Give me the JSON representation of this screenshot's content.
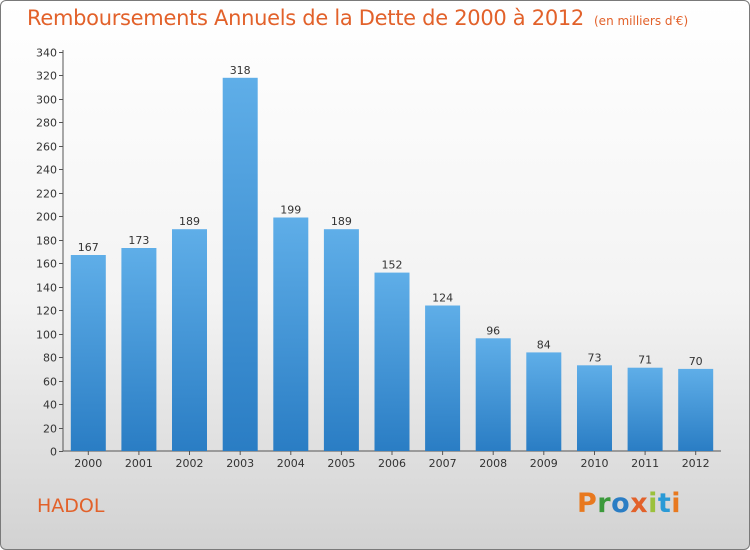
{
  "header": {
    "title": "Remboursements Annuels de la Dette de 2000 à 2012",
    "unit": "(en milliers d'€)"
  },
  "footer": {
    "city": "HADOL",
    "logo_text": "Proxiti"
  },
  "colors": {
    "accent": "#e2612a",
    "bar_top": "#5faee8",
    "bar_bottom": "#2a7dc4",
    "logo_letters": [
      "#e8791f",
      "#3c9a3c",
      "#2a7dc4",
      "#e2612a",
      "#9bc13c",
      "#2a9ad6",
      "#e8791f"
    ]
  },
  "chart_data": {
    "type": "bar",
    "title": "Remboursements Annuels de la Dette de 2000 à 2012",
    "xlabel": "",
    "ylabel": "",
    "categories": [
      "2000",
      "2001",
      "2002",
      "2003",
      "2004",
      "2005",
      "2006",
      "2007",
      "2008",
      "2009",
      "2010",
      "2011",
      "2012"
    ],
    "values": [
      167,
      173,
      189,
      318,
      199,
      189,
      152,
      124,
      96,
      84,
      73,
      71,
      70
    ],
    "ylim": [
      0,
      340
    ],
    "yticks": [
      0,
      20,
      40,
      60,
      80,
      100,
      120,
      140,
      160,
      180,
      200,
      220,
      240,
      260,
      280,
      300,
      320,
      340
    ],
    "grid": false,
    "legend": "none"
  }
}
